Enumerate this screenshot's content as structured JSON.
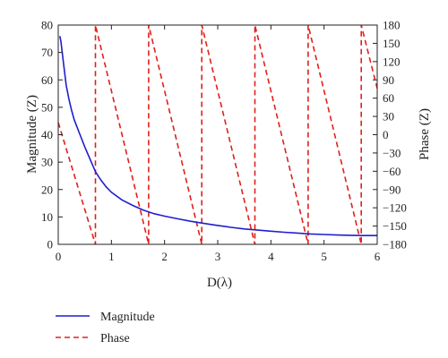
{
  "chart_data": {
    "type": "line",
    "xlabel": "D(λ)",
    "ylabel_left": "Magnitude (Z)",
    "ylabel_right": "Phase (Z)",
    "xlim": [
      0,
      6
    ],
    "ylim_left": [
      0,
      80
    ],
    "ylim_right": [
      -180,
      180
    ],
    "x_ticks": [
      0,
      1,
      2,
      3,
      4,
      5,
      6
    ],
    "y_ticks_left": [
      0,
      10,
      20,
      30,
      40,
      50,
      60,
      70,
      80
    ],
    "y_ticks_right": [
      -180,
      -150,
      -120,
      -90,
      -60,
      -30,
      0,
      30,
      60,
      90,
      120,
      150,
      180
    ],
    "grid": false,
    "legend_position": "below plot",
    "series": [
      {
        "name": "Magnitude",
        "axis": "left",
        "color": "#1f1fcf",
        "style": "solid",
        "x": [
          0.03,
          0.05,
          0.1,
          0.15,
          0.2,
          0.25,
          0.3,
          0.4,
          0.5,
          0.6,
          0.7,
          0.8,
          0.9,
          1.0,
          1.2,
          1.4,
          1.6,
          1.8,
          2.0,
          2.25,
          2.5,
          2.75,
          3.0,
          3.25,
          3.5,
          3.75,
          4.0,
          4.25,
          4.5,
          4.75,
          5.0,
          5.25,
          5.5,
          5.75,
          6.0
        ],
        "y": [
          76,
          74,
          66,
          58,
          53,
          49,
          45.5,
          40.5,
          35.5,
          31,
          26.5,
          23.5,
          21,
          19,
          16.2,
          14.2,
          12.5,
          11.2,
          10.3,
          9.3,
          8.4,
          7.6,
          6.9,
          6.2,
          5.6,
          5.2,
          4.8,
          4.4,
          4.1,
          3.8,
          3.6,
          3.4,
          3.3,
          3.2,
          3.2
        ]
      },
      {
        "name": "Phase",
        "axis": "right",
        "color": "#e0201c",
        "style": "dashed",
        "segments": [
          {
            "x": [
              0.0,
              0.7
            ],
            "y": [
              20,
              -180
            ]
          },
          {
            "x": [
              0.7,
              1.7
            ],
            "y": [
              180,
              -180
            ]
          },
          {
            "x": [
              1.7,
              2.7
            ],
            "y": [
              180,
              -180
            ]
          },
          {
            "x": [
              2.7,
              3.7
            ],
            "y": [
              180,
              -180
            ]
          },
          {
            "x": [
              3.7,
              4.7
            ],
            "y": [
              180,
              -180
            ]
          },
          {
            "x": [
              4.7,
              5.7
            ],
            "y": [
              180,
              -180
            ]
          },
          {
            "x": [
              5.7,
              6.0
            ],
            "y": [
              180,
              76
            ]
          }
        ]
      }
    ]
  }
}
